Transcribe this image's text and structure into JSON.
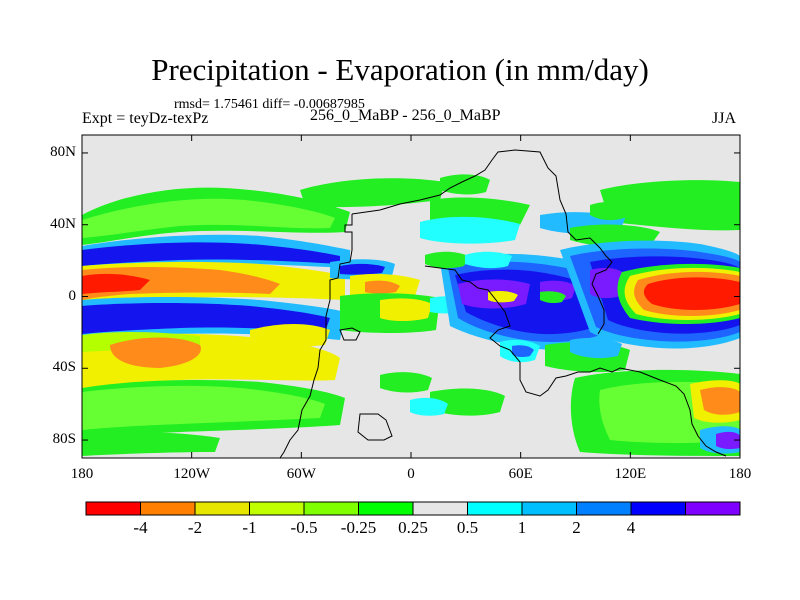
{
  "title": "Precipitation - Evaporation (in mm/day)",
  "stats": "rmsd= 1.75461 diff= -0.00687985",
  "expt_label": "Expt = teyDz-texPz",
  "case_label": "256_0_MaBP - 256_0_MaBP",
  "season": "JJA",
  "map": {
    "lat_ticks": [
      "80N",
      "40N",
      "0",
      "40S",
      "80S"
    ],
    "lat_values": [
      80,
      40,
      0,
      -40,
      -80
    ],
    "lon_ticks": [
      "180",
      "120W",
      "60W",
      "0",
      "60E",
      "120E",
      "180"
    ],
    "lon_values": [
      -180,
      -120,
      -60,
      0,
      60,
      120,
      180
    ],
    "background_color": "#e6e6e6"
  },
  "colorbar": {
    "labels": [
      "-4",
      "-2",
      "-1",
      "-0.5",
      "-0.25",
      "0.25",
      "0.5",
      "1",
      "2",
      "4"
    ],
    "colors": [
      "#ff0000",
      "#ff7f00",
      "#e6e600",
      "#bfff00",
      "#7fff00",
      "#00ff00",
      "#e6e6e6",
      "#00ffff",
      "#00bfff",
      "#0080ff",
      "#0000ff",
      "#7f00ff"
    ]
  },
  "palette": {
    "red": "#ff1a00",
    "orange": "#ff8c1a",
    "yellow": "#f0f000",
    "lime": "#b4ff00",
    "lightgreen": "#66ff33",
    "green": "#22ee22",
    "cyan": "#22ffff",
    "skyblue": "#22bbff",
    "blue": "#1e64ff",
    "darkblue": "#1414ee",
    "purple": "#7a1aff"
  }
}
